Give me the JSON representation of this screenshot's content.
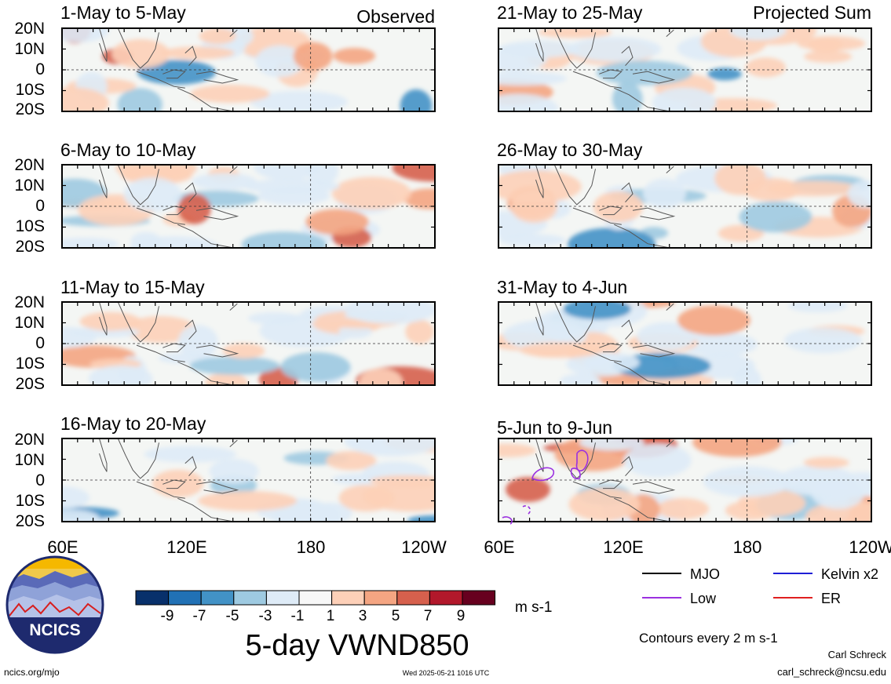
{
  "header": {
    "left_label": "Observed",
    "right_label": "Projected Sum"
  },
  "panels_left": [
    {
      "date_range": "1-May to 5-May"
    },
    {
      "date_range": "6-May to 10-May"
    },
    {
      "date_range": "11-May to 15-May"
    },
    {
      "date_range": "16-May to 20-May"
    }
  ],
  "panels_right": [
    {
      "date_range": "21-May to 25-May"
    },
    {
      "date_range": "26-May to 30-May"
    },
    {
      "date_range": "31-May to 4-Jun"
    },
    {
      "date_range": "5-Jun to 9-Jun"
    }
  ],
  "axes": {
    "lat_labels": [
      "20N",
      "10N",
      "0",
      "10S",
      "20S"
    ],
    "lon_labels": [
      "60E",
      "120E",
      "180",
      "120W"
    ]
  },
  "colorbar": {
    "tick_labels": [
      "-9",
      "-7",
      "-5",
      "-3",
      "-1",
      "1",
      "3",
      "5",
      "7",
      "9"
    ],
    "colors": [
      "#08306b",
      "#2171b5",
      "#4292c6",
      "#9ecae1",
      "#deebf7",
      "#f7f7f7",
      "#fdd0b8",
      "#f4a582",
      "#d6604d",
      "#b2182b",
      "#67001f"
    ],
    "units": "m s-1"
  },
  "title": "5-day VWND850",
  "legend": {
    "items": [
      {
        "label": "MJO",
        "color": "#000000"
      },
      {
        "label": "Kelvin x2",
        "color": "#1f1fd6"
      },
      {
        "label": "Low",
        "color": "#9b30e0"
      },
      {
        "label": "ER",
        "color": "#e02020"
      }
    ],
    "contour_note": "Contours every 2 m s-1"
  },
  "footer": {
    "logo_text": "NCICS",
    "url": "ncics.org/mjo",
    "timestamp": "Wed 2025-05-21 1016 UTC",
    "author": "Carl Schreck",
    "email": "carl_schreck@ncsu.edu"
  }
}
